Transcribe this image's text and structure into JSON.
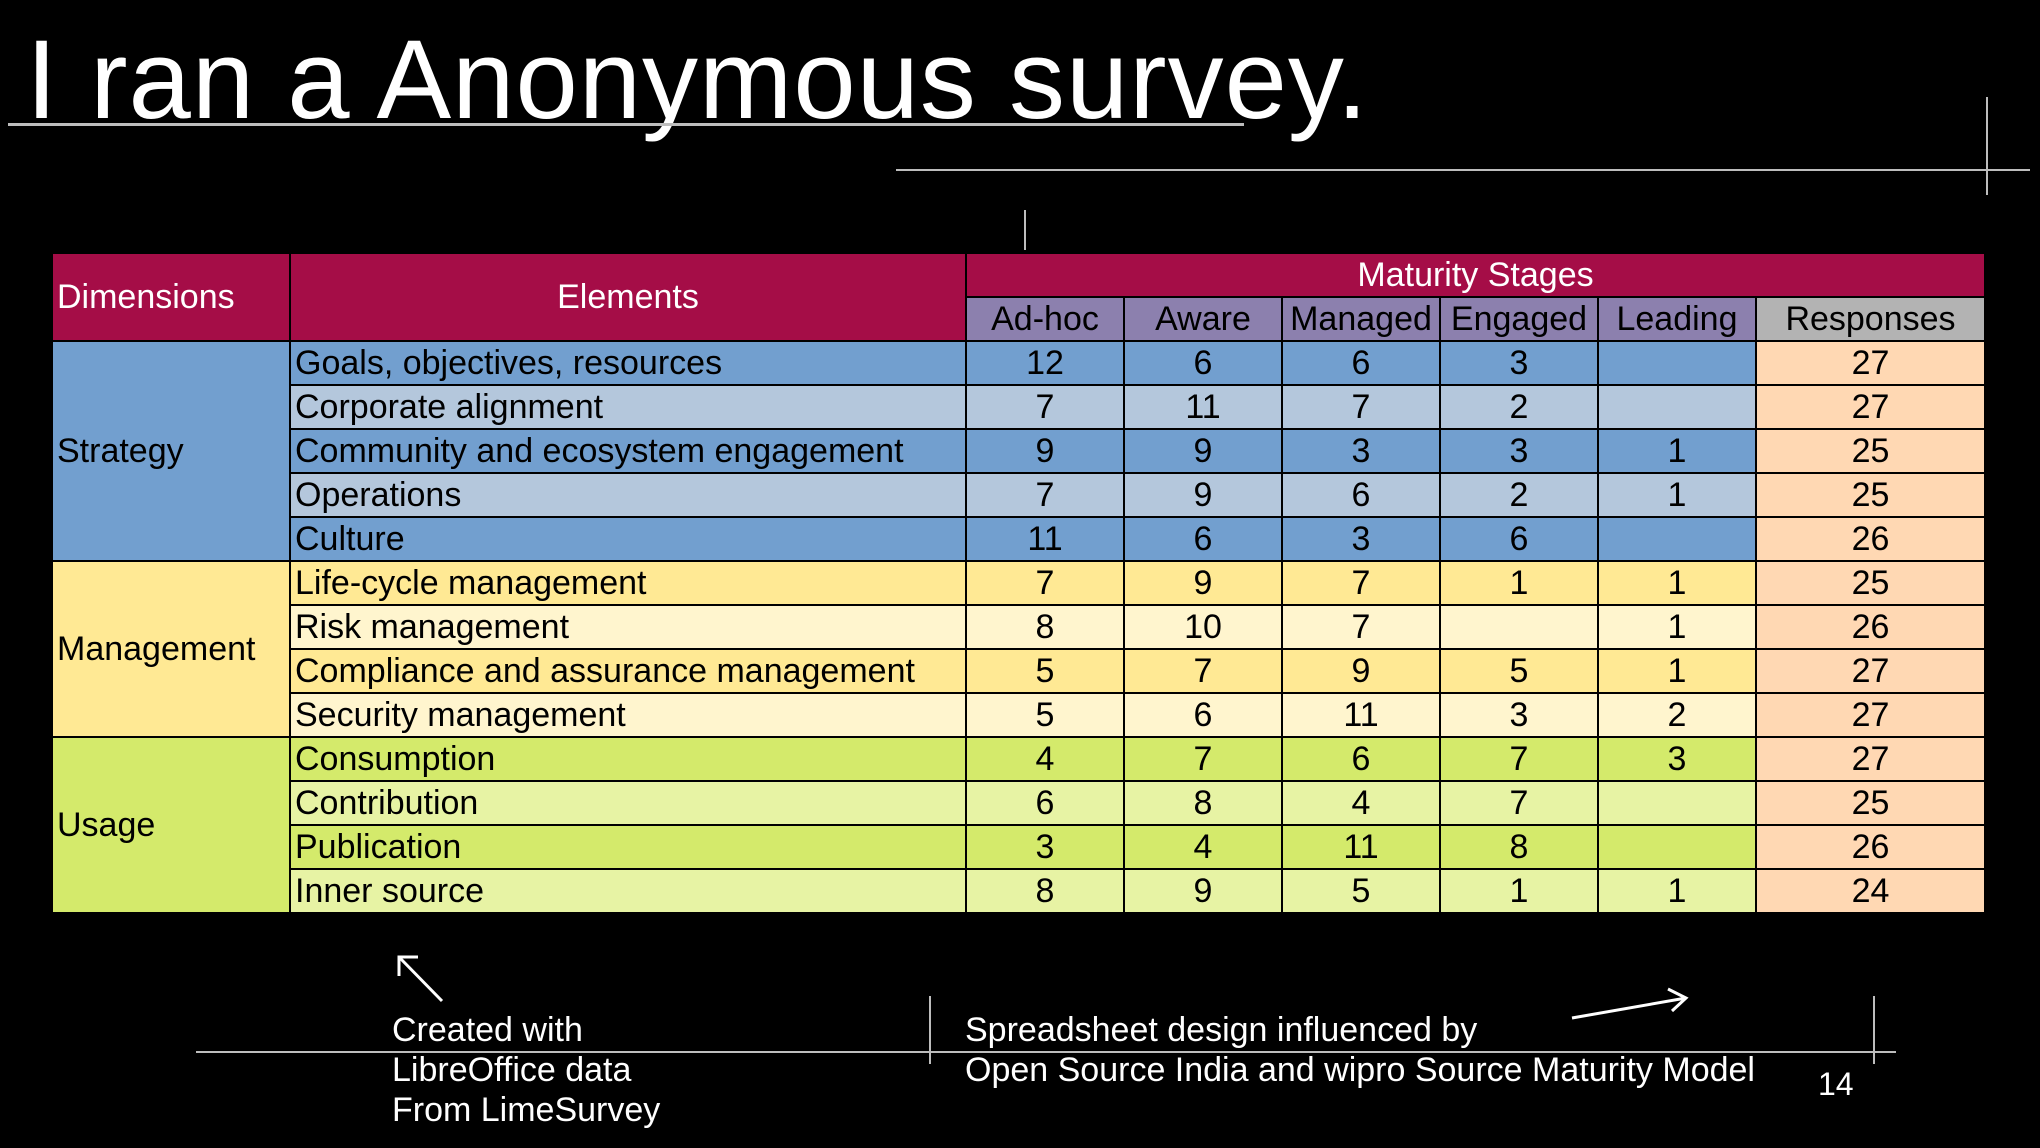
{
  "slide": {
    "title": "I ran a Anonymous survey.",
    "page_number": "14"
  },
  "table": {
    "header": {
      "dimensions": "Dimensions",
      "elements": "Elements",
      "maturity": "Maturity Stages",
      "stages": [
        "Ad-hoc",
        "Aware",
        "Managed",
        "Engaged",
        "Leading"
      ],
      "responses": "Responses"
    },
    "groups": [
      {
        "dimension": "Strategy",
        "rows": [
          {
            "element": "Goals, objectives, resources",
            "values": [
              "12",
              "6",
              "6",
              "3",
              ""
            ],
            "responses": "27"
          },
          {
            "element": "Corporate alignment",
            "values": [
              "7",
              "11",
              "7",
              "2",
              ""
            ],
            "responses": "27"
          },
          {
            "element": "Community and ecosystem engagement",
            "values": [
              "9",
              "9",
              "3",
              "3",
              "1"
            ],
            "responses": "25"
          },
          {
            "element": "Operations",
            "values": [
              "7",
              "9",
              "6",
              "2",
              "1"
            ],
            "responses": "25"
          },
          {
            "element": "Culture",
            "values": [
              "11",
              "6",
              "3",
              "6",
              ""
            ],
            "responses": "26"
          }
        ]
      },
      {
        "dimension": "Management",
        "rows": [
          {
            "element": "Life-cycle management",
            "values": [
              "7",
              "9",
              "7",
              "1",
              "1"
            ],
            "responses": "25"
          },
          {
            "element": "Risk management",
            "values": [
              "8",
              "10",
              "7",
              "",
              "1"
            ],
            "responses": "26"
          },
          {
            "element": "Compliance and assurance management",
            "values": [
              "5",
              "7",
              "9",
              "5",
              "1"
            ],
            "responses": "27"
          },
          {
            "element": "Security management",
            "values": [
              "5",
              "6",
              "11",
              "3",
              "2"
            ],
            "responses": "27"
          }
        ]
      },
      {
        "dimension": "Usage",
        "rows": [
          {
            "element": "Consumption",
            "values": [
              "4",
              "7",
              "6",
              "7",
              "3"
            ],
            "responses": "27"
          },
          {
            "element": "Contribution",
            "values": [
              "6",
              "8",
              "4",
              "7",
              ""
            ],
            "responses": "25"
          },
          {
            "element": "Publication",
            "values": [
              "3",
              "4",
              "11",
              "8",
              ""
            ],
            "responses": "26"
          },
          {
            "element": "Inner source",
            "values": [
              "8",
              "9",
              "5",
              "1",
              "1"
            ],
            "responses": "24"
          }
        ]
      }
    ]
  },
  "notes": {
    "left": [
      "Created with",
      "LibreOffice data",
      "From LimeSurvey"
    ],
    "right": [
      "Spreadsheet design influenced by",
      "Open Source India and wipro Source Maturity Model"
    ]
  }
}
